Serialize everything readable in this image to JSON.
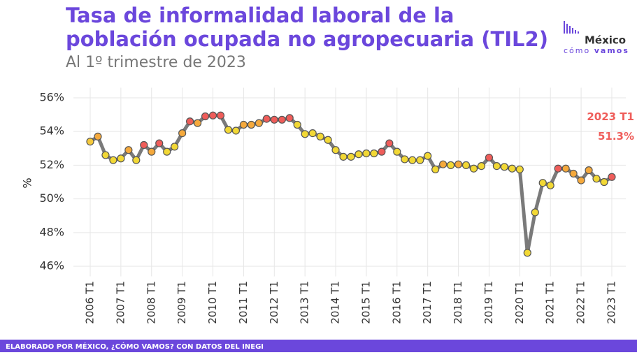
{
  "header": {
    "title_line1": "Tasa de informalidad laboral de la",
    "title_line2": "población ocupada no agropecuaria (TIL2)",
    "subtitle": "Al 1º trimestre de 2023"
  },
  "logo": {
    "name": "México",
    "tagline_a": "cómo",
    "tagline_b": "vamos"
  },
  "footer": "ELABORADO POR MÉXICO, ¿CÓMO VAMOS? CON DATOS DEL INEGI",
  "chart_data": {
    "type": "line",
    "ylabel": "%",
    "annotation": "2023 T1",
    "categories": [
      "2006 T1",
      null,
      null,
      null,
      "2007 T1",
      null,
      null,
      null,
      "2008 T1",
      null,
      null,
      null,
      "2009 T1",
      null,
      null,
      null,
      "2010 T1",
      null,
      null,
      null,
      "2011 T1",
      null,
      null,
      null,
      "2012 T1",
      null,
      null,
      null,
      "2013 T1",
      null,
      null,
      null,
      "2014 T1",
      null,
      null,
      null,
      "2015 T1",
      null,
      null,
      null,
      "2016 T1",
      null,
      null,
      null,
      "2017 T1",
      null,
      null,
      null,
      "2018 T1",
      null,
      null,
      null,
      "2019 T1",
      null,
      null,
      null,
      "2020 T1",
      null,
      null,
      null,
      "2021 T1",
      null,
      null,
      null,
      "2022 T1",
      null,
      null,
      null,
      "2023 T1"
    ],
    "values": [
      53.4,
      53.7,
      52.6,
      52.3,
      52.4,
      52.9,
      52.3,
      53.2,
      52.8,
      53.3,
      52.8,
      53.1,
      53.9,
      54.6,
      54.5,
      54.9,
      54.95,
      54.95,
      54.1,
      54.05,
      54.4,
      54.4,
      54.5,
      54.75,
      54.7,
      54.7,
      54.8,
      54.4,
      53.85,
      53.9,
      53.7,
      53.5,
      52.9,
      52.5,
      52.5,
      52.65,
      52.7,
      52.7,
      52.8,
      53.3,
      52.8,
      52.35,
      52.3,
      52.3,
      52.55,
      51.75,
      52.05,
      52.0,
      52.05,
      52.0,
      51.8,
      51.95,
      52.45,
      51.95,
      51.9,
      51.8,
      51.75,
      46.8,
      49.2,
      50.95,
      50.8,
      51.8,
      51.8,
      51.5,
      51.1,
      51.7,
      51.2,
      51.0,
      51.3
    ],
    "value_labels": [
      null,
      null,
      null,
      null,
      null,
      null,
      null,
      null,
      null,
      null,
      null,
      null,
      null,
      null,
      null,
      null,
      null,
      null,
      null,
      null,
      null,
      null,
      null,
      null,
      null,
      null,
      null,
      null,
      null,
      null,
      null,
      null,
      null,
      null,
      null,
      null,
      null,
      null,
      null,
      null,
      null,
      null,
      null,
      null,
      null,
      null,
      null,
      null,
      null,
      null,
      null,
      null,
      null,
      null,
      null,
      null,
      null,
      null,
      null,
      null,
      null,
      null,
      null,
      null,
      null,
      null,
      null,
      null,
      "51.3%"
    ],
    "line_color": "#7a7a7a",
    "label_color": "#ef5d5a",
    "point_colors": [
      "#f5c93c",
      "#f5a93c",
      "#f2d835",
      "#f2d835",
      "#f2d835",
      "#f5a93c",
      "#f2d835",
      "#ef5d5a",
      "#f5a93c",
      "#ef5d5a",
      "#f2d835",
      "#f2d835",
      "#f5a93c",
      "#ef5d5a",
      "#f5a93c",
      "#ef5d5a",
      "#ef5d5a",
      "#ef5d5a",
      "#f2d835",
      "#f2d835",
      "#f5a93c",
      "#f5a93c",
      "#f5a93c",
      "#ef5d5a",
      "#ef5d5a",
      "#ef5d5a",
      "#ef5d5a",
      "#f2d835",
      "#f2d835",
      "#f2d835",
      "#f2d835",
      "#f2d835",
      "#f2d835",
      "#f2d835",
      "#f2d835",
      "#f2d835",
      "#f2d835",
      "#f2d835",
      "#ef5d5a",
      "#ef5d5a",
      "#f2d835",
      "#f2d835",
      "#f2d835",
      "#f2d835",
      "#f2d835",
      "#f2d835",
      "#f5a93c",
      "#f2d835",
      "#f5a93c",
      "#f2d835",
      "#f2d835",
      "#f2d835",
      "#ef5d5a",
      "#f2d835",
      "#f2d835",
      "#f2d835",
      "#f2d835",
      "#f2d835",
      "#f2d835",
      "#f2d835",
      "#f2d835",
      "#ef5d5a",
      "#f5a93c",
      "#f5a93c",
      "#f5a93c",
      "#f5a93c",
      "#f2d835",
      "#f2d835",
      "#ef5d5a"
    ],
    "ylim": [
      45.4,
      56.6
    ],
    "yticks": [
      {
        "value": 46,
        "label": "46%"
      },
      {
        "value": 48,
        "label": "48%"
      },
      {
        "value": 50,
        "label": "50%"
      },
      {
        "value": 52,
        "label": "52%"
      },
      {
        "value": 54,
        "label": "54%"
      },
      {
        "value": 56,
        "label": "56%"
      }
    ],
    "grid": true
  }
}
